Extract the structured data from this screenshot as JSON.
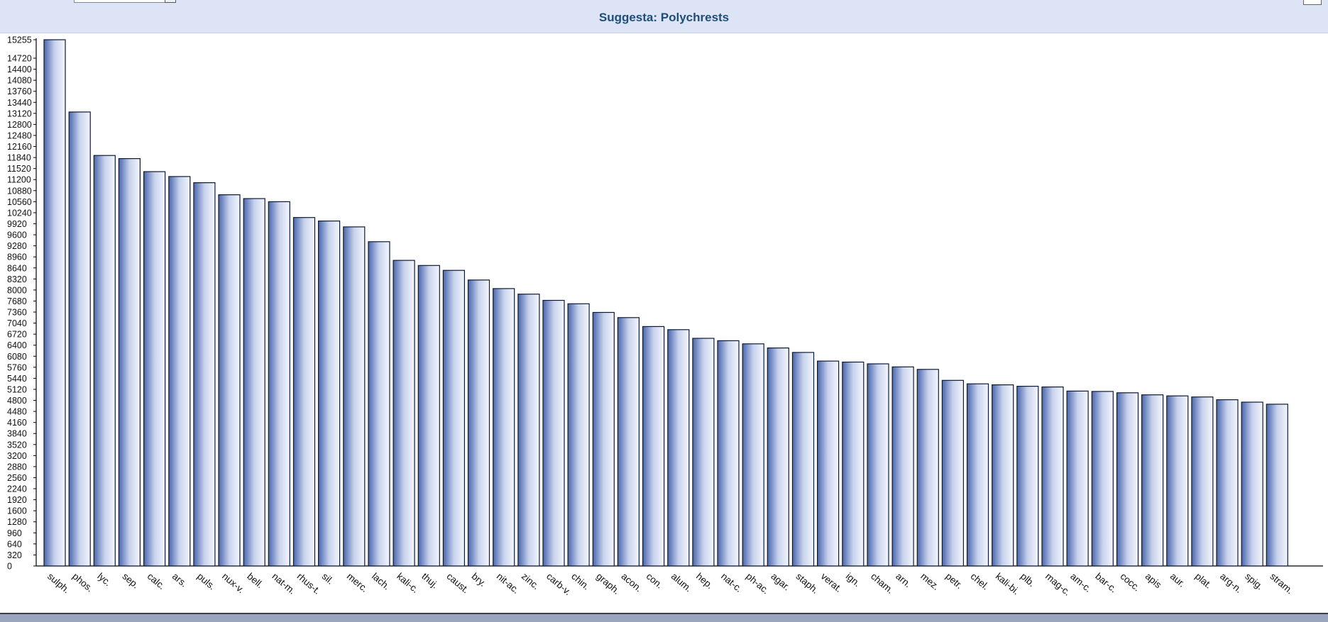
{
  "window": {
    "title": "Suggesta: Polychrests"
  },
  "chart_data": {
    "type": "bar",
    "title": "Suggesta: Polychrests",
    "xlabel": "",
    "ylabel": "",
    "ylim": [
      0,
      15255
    ],
    "yticks": [
      0,
      320,
      640,
      960,
      1280,
      1600,
      1920,
      2240,
      2560,
      2880,
      3200,
      3520,
      3840,
      4160,
      4480,
      4800,
      5120,
      5440,
      5760,
      6080,
      6400,
      6720,
      7040,
      7360,
      7680,
      8000,
      8320,
      8640,
      8960,
      9280,
      9600,
      9920,
      10240,
      10560,
      10880,
      11200,
      11520,
      11840,
      12160,
      12480,
      12800,
      13120,
      13440,
      13760,
      14080,
      14400,
      14720,
      15255
    ],
    "grid": false,
    "legend": "none",
    "categories": [
      "sulph.",
      "phos.",
      "lyc.",
      "sep.",
      "calc.",
      "ars.",
      "puls.",
      "nux-v.",
      "bell.",
      "nat-m.",
      "rhus-t.",
      "sil.",
      "merc.",
      "lach.",
      "kali-c.",
      "thuj.",
      "caust.",
      "bry.",
      "nit-ac.",
      "zinc.",
      "carb-v.",
      "chin.",
      "graph.",
      "acon.",
      "con.",
      "alum.",
      "hep.",
      "nat-c.",
      "ph-ac.",
      "agar.",
      "staph.",
      "verat.",
      "ign.",
      "cham.",
      "arn.",
      "mez.",
      "petr.",
      "chel.",
      "kali-bi.",
      "plb.",
      "mag-c.",
      "am-c.",
      "bar-c.",
      "cocc.",
      "apis",
      "aur.",
      "plat.",
      "arg-n.",
      "spig.",
      "stram."
    ],
    "values": [
      15255,
      13160,
      11900,
      11810,
      11430,
      11290,
      11110,
      10760,
      10650,
      10560,
      10100,
      10000,
      9830,
      9400,
      8860,
      8710,
      8570,
      8290,
      8040,
      7880,
      7700,
      7600,
      7350,
      7200,
      6940,
      6850,
      6600,
      6530,
      6440,
      6320,
      6190,
      5940,
      5910,
      5860,
      5770,
      5700,
      5380,
      5280,
      5250,
      5210,
      5190,
      5070,
      5060,
      5020,
      4960,
      4930,
      4900,
      4820,
      4750,
      4690
    ],
    "colors": {
      "bar_edge": "#c8d2ec",
      "bar_center": "#f4f6fc",
      "bar_dark": "#4a67ad",
      "bar_outline": "#0e1a33",
      "axis": "#000000",
      "title": "#1f4e79",
      "header_bg": "#dce4f5"
    }
  }
}
